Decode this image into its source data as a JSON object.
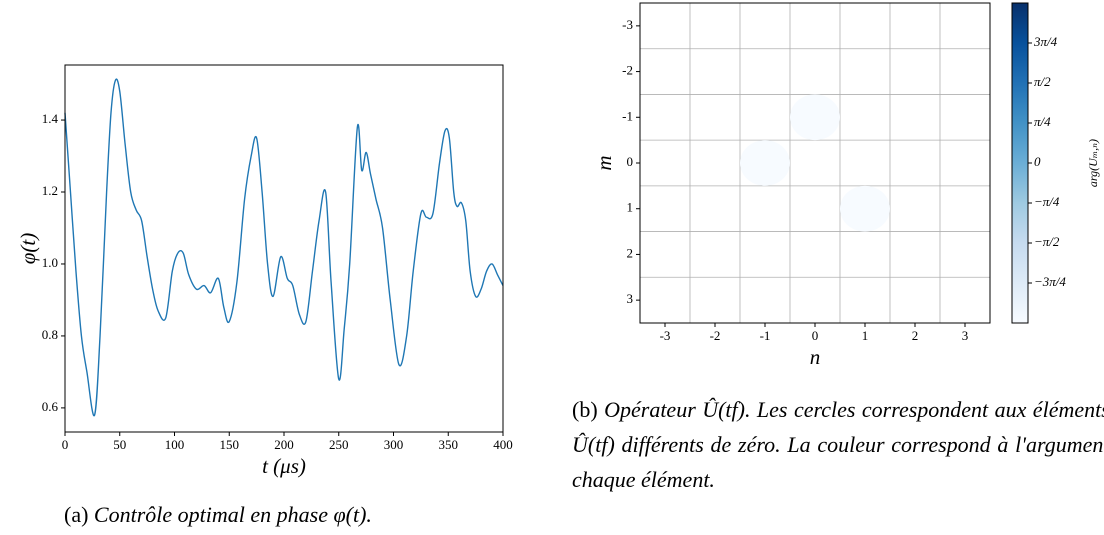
{
  "chart_data": [
    {
      "type": "line",
      "xlabel": "t (μs)",
      "ylabel": "φ(t)",
      "x": [
        0,
        5,
        10,
        15,
        20,
        27,
        32,
        38,
        42,
        46,
        50,
        55,
        60,
        65,
        70,
        75,
        80,
        85,
        92,
        98,
        103,
        108,
        113,
        120,
        127,
        133,
        140,
        145,
        150,
        157,
        164,
        170,
        175,
        180,
        185,
        190,
        197,
        203,
        208,
        214,
        220,
        226,
        232,
        238,
        243,
        250,
        255,
        260,
        267,
        271,
        275,
        279,
        284,
        290,
        297,
        305,
        312,
        318,
        325,
        330,
        336,
        342,
        347,
        351,
        355,
        358,
        362,
        366,
        370,
        375,
        380,
        385,
        390,
        395,
        400
      ],
      "values": [
        1.42,
        1.2,
        0.98,
        0.8,
        0.7,
        0.58,
        0.8,
        1.2,
        1.42,
        1.51,
        1.48,
        1.33,
        1.2,
        1.15,
        1.12,
        1.02,
        0.93,
        0.87,
        0.85,
        0.98,
        1.03,
        1.03,
        0.97,
        0.93,
        0.94,
        0.92,
        0.96,
        0.88,
        0.84,
        0.95,
        1.18,
        1.3,
        1.35,
        1.2,
        1.0,
        0.91,
        1.02,
        0.96,
        0.94,
        0.86,
        0.84,
        0.98,
        1.12,
        1.2,
        0.95,
        0.68,
        0.82,
        1.0,
        1.38,
        1.26,
        1.31,
        1.25,
        1.18,
        1.1,
        0.9,
        0.72,
        0.8,
        0.98,
        1.14,
        1.13,
        1.14,
        1.28,
        1.37,
        1.35,
        1.2,
        1.16,
        1.17,
        1.12,
        0.98,
        0.91,
        0.93,
        0.98,
        1.0,
        0.97,
        0.94
      ],
      "color": "#1f77b4",
      "xlim": [
        0,
        400
      ],
      "xticks": [
        0,
        50,
        100,
        150,
        200,
        250,
        300,
        350,
        400
      ],
      "ylim": [
        0.533,
        1.553
      ],
      "yticks": [
        0.6,
        0.8,
        {
          "value": 1,
          "label": "1.0"
        },
        1.2,
        1.4
      ]
    },
    {
      "type": "scatter",
      "xlabel": "n",
      "ylabel": "m",
      "x": [
        0,
        -1,
        1
      ],
      "y": [
        -1,
        0,
        1
      ],
      "values": [
        -3.14,
        -3.14,
        -3.14
      ],
      "xlim": [
        -3.5,
        3.5
      ],
      "xticks": [
        -3,
        -2,
        -1,
        0,
        1,
        2,
        3
      ],
      "ylim": [
        3.5,
        -3.5
      ],
      "yticks": [
        -3,
        -2,
        -1,
        0,
        1,
        2,
        3
      ],
      "grid": true,
      "grid_positions": [
        -2.5,
        -1.5,
        -0.5,
        0.5,
        1.5,
        2.5
      ],
      "colormap": [
        "#f7fbff",
        "#deebf7",
        "#c6dbef",
        "#9ecae1",
        "#6baed6",
        "#4292c6",
        "#2171b5",
        "#08519c",
        "#08306b"
      ],
      "clim": [
        -3.1416,
        3.1416
      ],
      "colorbar_label": "arg(Uₘ,ₙ)",
      "cticks": [
        {
          "value": -2.3562,
          "label": "−3π/4"
        },
        {
          "value": -1.5708,
          "label": "−π/2"
        },
        {
          "value": -0.7854,
          "label": "−π/4"
        },
        0,
        {
          "value": 0.7854,
          "label": "π/4"
        },
        {
          "value": 1.5708,
          "label": "π/2"
        },
        {
          "value": 2.3562,
          "label": "3π/4"
        }
      ]
    }
  ],
  "captions": [
    {
      "label": "(a)",
      "text": "Contrôle optimal en phase φ(t)."
    },
    {
      "label": "(b)",
      "text": "Opérateur Û(tf). Les cercles correspondent aux éléments de Û(tf) différents de zéro. La couleur correspond à l'argument de chaque élément."
    }
  ]
}
